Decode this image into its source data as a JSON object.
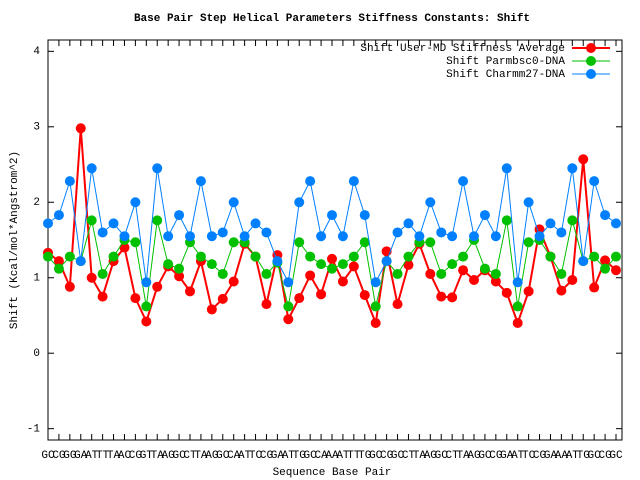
{
  "chart_data": {
    "type": "line",
    "title": "Base Pair Step Helical Parameters Stiffness Constants: Shift",
    "x_label": "Sequence Base Pair",
    "y_label": "Shift (Kcal/mol*Angstrom^2)",
    "legend": "top-right",
    "ylim": [
      -1.15,
      4.15
    ],
    "yticks": [
      -1,
      0,
      1,
      2,
      3,
      4
    ],
    "categories": [
      "GC",
      "CG",
      "GG",
      "GA",
      "AT",
      "TT",
      "TA",
      "AC",
      "CG",
      "GT",
      "TA",
      "AG",
      "GC",
      "CT",
      "TA",
      "AG",
      "GC",
      "CA",
      "AT",
      "TC",
      "CG",
      "GA",
      "AT",
      "TG",
      "GC",
      "CA",
      "AA",
      "AT",
      "TT",
      "TG",
      "GC",
      "CG",
      "GC",
      "CT",
      "TA",
      "AG",
      "GC",
      "CT",
      "TA",
      "AG",
      "GC",
      "CG",
      "GA",
      "AT",
      "TC",
      "CG",
      "GA",
      "AA",
      "AT",
      "TG",
      "GC",
      "CG",
      "GC"
    ],
    "series": [
      {
        "name": "Shift User-MD Stiffness Average",
        "color": "#ff0000",
        "width": 2,
        "values": [
          1.33,
          1.22,
          0.88,
          2.98,
          1.0,
          0.75,
          1.22,
          1.4,
          0.73,
          0.42,
          0.88,
          1.15,
          1.02,
          0.82,
          1.22,
          0.58,
          0.72,
          0.95,
          1.45,
          1.28,
          0.65,
          1.3,
          0.45,
          0.73,
          1.03,
          0.78,
          1.25,
          0.95,
          1.15,
          0.77,
          0.4,
          1.35,
          0.65,
          1.17,
          1.45,
          1.05,
          0.75,
          0.74,
          1.1,
          0.97,
          1.1,
          0.95,
          0.8,
          0.4,
          0.82,
          1.64,
          1.28,
          0.83,
          0.97,
          2.57,
          0.87,
          1.23,
          1.1
        ]
      },
      {
        "name": "Shift Parmbsc0-DNA",
        "color": "#00c000",
        "width": 1,
        "values": [
          1.28,
          1.12,
          1.28,
          1.22,
          1.76,
          1.05,
          1.28,
          1.5,
          1.47,
          0.62,
          1.76,
          1.18,
          1.12,
          1.47,
          1.28,
          1.18,
          1.05,
          1.47,
          1.47,
          1.28,
          1.05,
          1.2,
          0.62,
          1.47,
          1.28,
          1.18,
          1.12,
          1.18,
          1.28,
          1.47,
          0.62,
          1.22,
          1.05,
          1.28,
          1.47,
          1.47,
          1.05,
          1.18,
          1.28,
          1.5,
          1.12,
          1.05,
          1.76,
          0.62,
          1.47,
          1.5,
          1.28,
          1.05,
          1.76,
          1.22,
          1.28,
          1.12,
          1.28
        ]
      },
      {
        "name": "Shift Charmm27-DNA",
        "color": "#0080ff",
        "width": 1,
        "values": [
          1.72,
          1.83,
          2.28,
          1.22,
          2.45,
          1.6,
          1.72,
          1.55,
          2.0,
          0.94,
          2.45,
          1.55,
          1.83,
          1.55,
          2.28,
          1.55,
          1.6,
          2.0,
          1.55,
          1.72,
          1.6,
          1.22,
          0.94,
          2.0,
          2.28,
          1.55,
          1.83,
          1.55,
          2.28,
          1.83,
          0.94,
          1.22,
          1.6,
          1.72,
          1.55,
          2.0,
          1.6,
          1.55,
          2.28,
          1.55,
          1.83,
          1.55,
          2.45,
          0.94,
          2.0,
          1.55,
          1.72,
          1.6,
          2.45,
          1.22,
          2.28,
          1.83,
          1.72
        ]
      }
    ]
  }
}
